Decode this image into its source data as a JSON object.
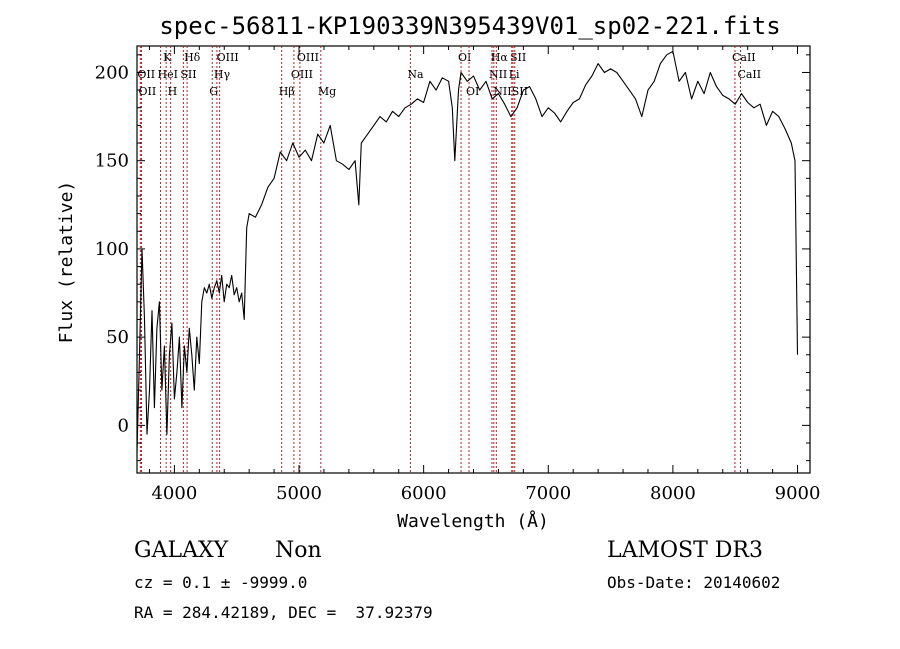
{
  "chart_data": {
    "type": "line",
    "title": "spec-56811-KP190339N395439V01_sp02-221.fits",
    "xlabel": "Wavelength (Å)",
    "ylabel": "Flux (relative)",
    "xlim": [
      3700,
      9100
    ],
    "ylim": [
      -27,
      215
    ],
    "xticks": [
      4000,
      5000,
      6000,
      7000,
      8000,
      9000
    ],
    "yticks": [
      0,
      50,
      100,
      150,
      200
    ],
    "grid": false,
    "series": [
      {
        "color": "#000000",
        "x": [
          3700,
          3720,
          3740,
          3760,
          3780,
          3800,
          3820,
          3840,
          3860,
          3880,
          3900,
          3920,
          3940,
          3960,
          3980,
          4000,
          4020,
          4040,
          4060,
          4080,
          4100,
          4120,
          4140,
          4160,
          4180,
          4200,
          4220,
          4240,
          4260,
          4280,
          4300,
          4320,
          4340,
          4360,
          4380,
          4400,
          4420,
          4440,
          4460,
          4480,
          4500,
          4520,
          4540,
          4560,
          4580,
          4600,
          4650,
          4700,
          4750,
          4800,
          4850,
          4900,
          4950,
          5000,
          5050,
          5100,
          5150,
          5200,
          5250,
          5300,
          5350,
          5400,
          5450,
          5480,
          5500,
          5550,
          5600,
          5650,
          5700,
          5750,
          5800,
          5850,
          5900,
          5950,
          6000,
          6050,
          6100,
          6150,
          6200,
          6230,
          6250,
          6280,
          6300,
          6350,
          6400,
          6450,
          6500,
          6550,
          6600,
          6650,
          6700,
          6750,
          6800,
          6850,
          6900,
          6950,
          7000,
          7050,
          7100,
          7150,
          7200,
          7250,
          7300,
          7350,
          7400,
          7450,
          7500,
          7550,
          7600,
          7650,
          7700,
          7750,
          7800,
          7850,
          7900,
          7950,
          8000,
          8050,
          8100,
          8150,
          8200,
          8250,
          8300,
          8350,
          8400,
          8450,
          8500,
          8550,
          8600,
          8650,
          8700,
          8750,
          8800,
          8850,
          8900,
          8950,
          8980,
          9000
        ],
        "y": [
          -15,
          40,
          100,
          60,
          -5,
          20,
          65,
          10,
          55,
          70,
          20,
          45,
          -5,
          40,
          58,
          15,
          30,
          50,
          10,
          45,
          30,
          55,
          40,
          20,
          50,
          35,
          70,
          78,
          75,
          80,
          72,
          78,
          82,
          75,
          85,
          70,
          80,
          78,
          85,
          74,
          78,
          70,
          75,
          60,
          112,
          120,
          118,
          125,
          135,
          140,
          155,
          150,
          160,
          152,
          156,
          150,
          165,
          160,
          170,
          150,
          148,
          145,
          150,
          125,
          160,
          165,
          170,
          175,
          172,
          178,
          175,
          180,
          182,
          185,
          183,
          195,
          190,
          197,
          195,
          180,
          150,
          190,
          200,
          195,
          198,
          190,
          195,
          185,
          188,
          182,
          175,
          180,
          190,
          192,
          185,
          175,
          180,
          177,
          172,
          178,
          183,
          185,
          193,
          198,
          205,
          200,
          202,
          200,
          195,
          190,
          185,
          175,
          190,
          195,
          205,
          210,
          212,
          195,
          200,
          185,
          195,
          188,
          200,
          192,
          187,
          185,
          182,
          188,
          183,
          180,
          182,
          170,
          178,
          175,
          168,
          160,
          150,
          40
        ]
      }
    ],
    "lines": [
      {
        "wavelength": 3934,
        "label": "K",
        "row": 1
      },
      {
        "wavelength": 3970,
        "label": "H",
        "row": 3
      },
      {
        "wavelength": 3727,
        "label": "OII",
        "row": 2
      },
      {
        "wavelength": 3736,
        "label": "OII",
        "row": 3
      },
      {
        "wavelength": 3889,
        "label": "HeI",
        "row": 2
      },
      {
        "wavelength": 4102,
        "label": "Hδ",
        "row": 1
      },
      {
        "wavelength": 4072,
        "label": "SII",
        "row": 2
      },
      {
        "wavelength": 4341,
        "label": "Hγ",
        "row": 2
      },
      {
        "wavelength": 4304,
        "label": "G",
        "row": 3
      },
      {
        "wavelength": 4363,
        "label": "OIII",
        "row": 1
      },
      {
        "wavelength": 4861,
        "label": "Hβ",
        "row": 3
      },
      {
        "wavelength": 4959,
        "label": "OIII",
        "row": 2
      },
      {
        "wavelength": 5007,
        "label": "OIII",
        "row": 1
      },
      {
        "wavelength": 5175,
        "label": "Mg",
        "row": 3
      },
      {
        "wavelength": 5894,
        "label": "Na",
        "row": 2
      },
      {
        "wavelength": 6300,
        "label": "OI",
        "row": 1
      },
      {
        "wavelength": 6364,
        "label": "OI",
        "row": 3
      },
      {
        "wavelength": 6563,
        "label": "Hα",
        "row": 1
      },
      {
        "wavelength": 6548,
        "label": "NII",
        "row": 2
      },
      {
        "wavelength": 6583,
        "label": "NII",
        "row": 3
      },
      {
        "wavelength": 6717,
        "label": "SII",
        "row": 1
      },
      {
        "wavelength": 6707,
        "label": "Li",
        "row": 2
      },
      {
        "wavelength": 6731,
        "label": "SII",
        "row": 3
      },
      {
        "wavelength": 8498,
        "label": "CaII",
        "row": 1
      },
      {
        "wavelength": 8542,
        "label": "CaII",
        "row": 2
      }
    ]
  },
  "footer": {
    "object_class": "GALAXY",
    "subclass": "Non",
    "survey": "LAMOST DR3",
    "redshift_line": "cz = 0.1 ± -9999.0",
    "obs_date_line": "Obs-Date: 20140602",
    "coords_line": "RA = 284.42189, DEC =  37.92379"
  }
}
